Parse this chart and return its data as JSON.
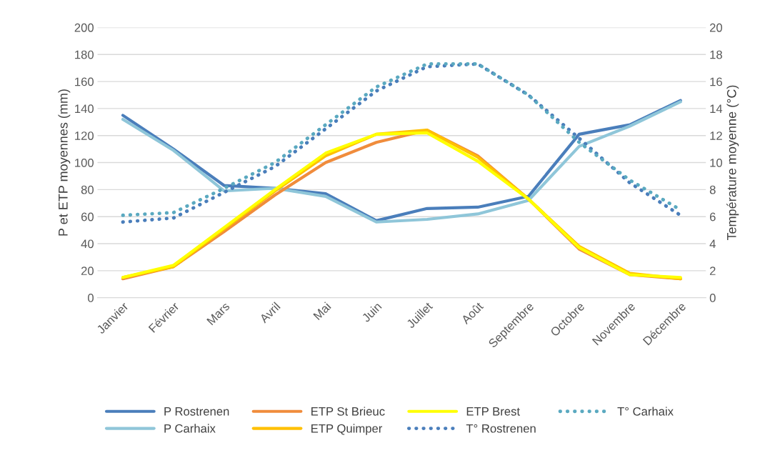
{
  "chart_data": {
    "type": "line",
    "ylabel": "P et ETP moyennes (mm)",
    "y2label": "Température moyenne (°C)",
    "categories": [
      "Janvier",
      "Février",
      "Mars",
      "Avril",
      "Mai",
      "Juin",
      "Juillet",
      "Août",
      "Septembre",
      "Octobre",
      "Novembre",
      "Décembre"
    ],
    "ylim": [
      0,
      200
    ],
    "yticks": [
      0,
      20,
      40,
      60,
      80,
      100,
      120,
      140,
      160,
      180,
      200
    ],
    "y2lim": [
      0,
      20
    ],
    "y2ticks": [
      0,
      2,
      4,
      6,
      8,
      10,
      12,
      14,
      16,
      18,
      20
    ],
    "grid": "y",
    "legend": "bottom",
    "series": [
      {
        "name": "P Rostrenen",
        "color": "#4a7ebb",
        "line_style": "solid",
        "values": [
          135,
          110,
          83,
          81,
          77,
          57,
          66,
          67,
          75,
          121,
          128,
          146
        ]
      },
      {
        "name": "P Carhaix",
        "color": "#8fc6d9",
        "line_style": "solid",
        "values": [
          132,
          109,
          79,
          81,
          75,
          56,
          58,
          62,
          72,
          112,
          127,
          145
        ]
      },
      {
        "name": "ETP St Brieuc",
        "color": "#f08c3c",
        "line_style": "solid",
        "values": [
          14,
          23,
          49,
          76,
          100,
          115,
          124,
          105,
          73,
          36,
          17,
          14
        ]
      },
      {
        "name": "ETP Quimper",
        "color": "#ffc000",
        "line_style": "solid",
        "values": [
          15,
          23,
          51,
          79,
          105,
          121,
          124,
          104,
          73,
          38,
          18,
          14
        ]
      },
      {
        "name": "ETP Brest",
        "color": "#ffff00",
        "line_style": "solid",
        "values": [
          15,
          24,
          52,
          80,
          107,
          121,
          122,
          101,
          73,
          37,
          17,
          15
        ]
      },
      {
        "name": "T° Rostrenen",
        "color": "#4a7ebb",
        "line_style": "dotted",
        "axis": "y2",
        "values": [
          5.6,
          5.9,
          7.8,
          9.7,
          12.5,
          15.3,
          17.1,
          17.3,
          15.0,
          11.8,
          8.5,
          6.1
        ]
      },
      {
        "name": "T° Carhaix",
        "color": "#5aa9c0",
        "line_style": "dotted",
        "axis": "y2",
        "values": [
          6.1,
          6.3,
          8.1,
          10.0,
          12.8,
          15.6,
          17.3,
          17.3,
          15.0,
          11.5,
          8.7,
          6.5
        ]
      }
    ]
  }
}
